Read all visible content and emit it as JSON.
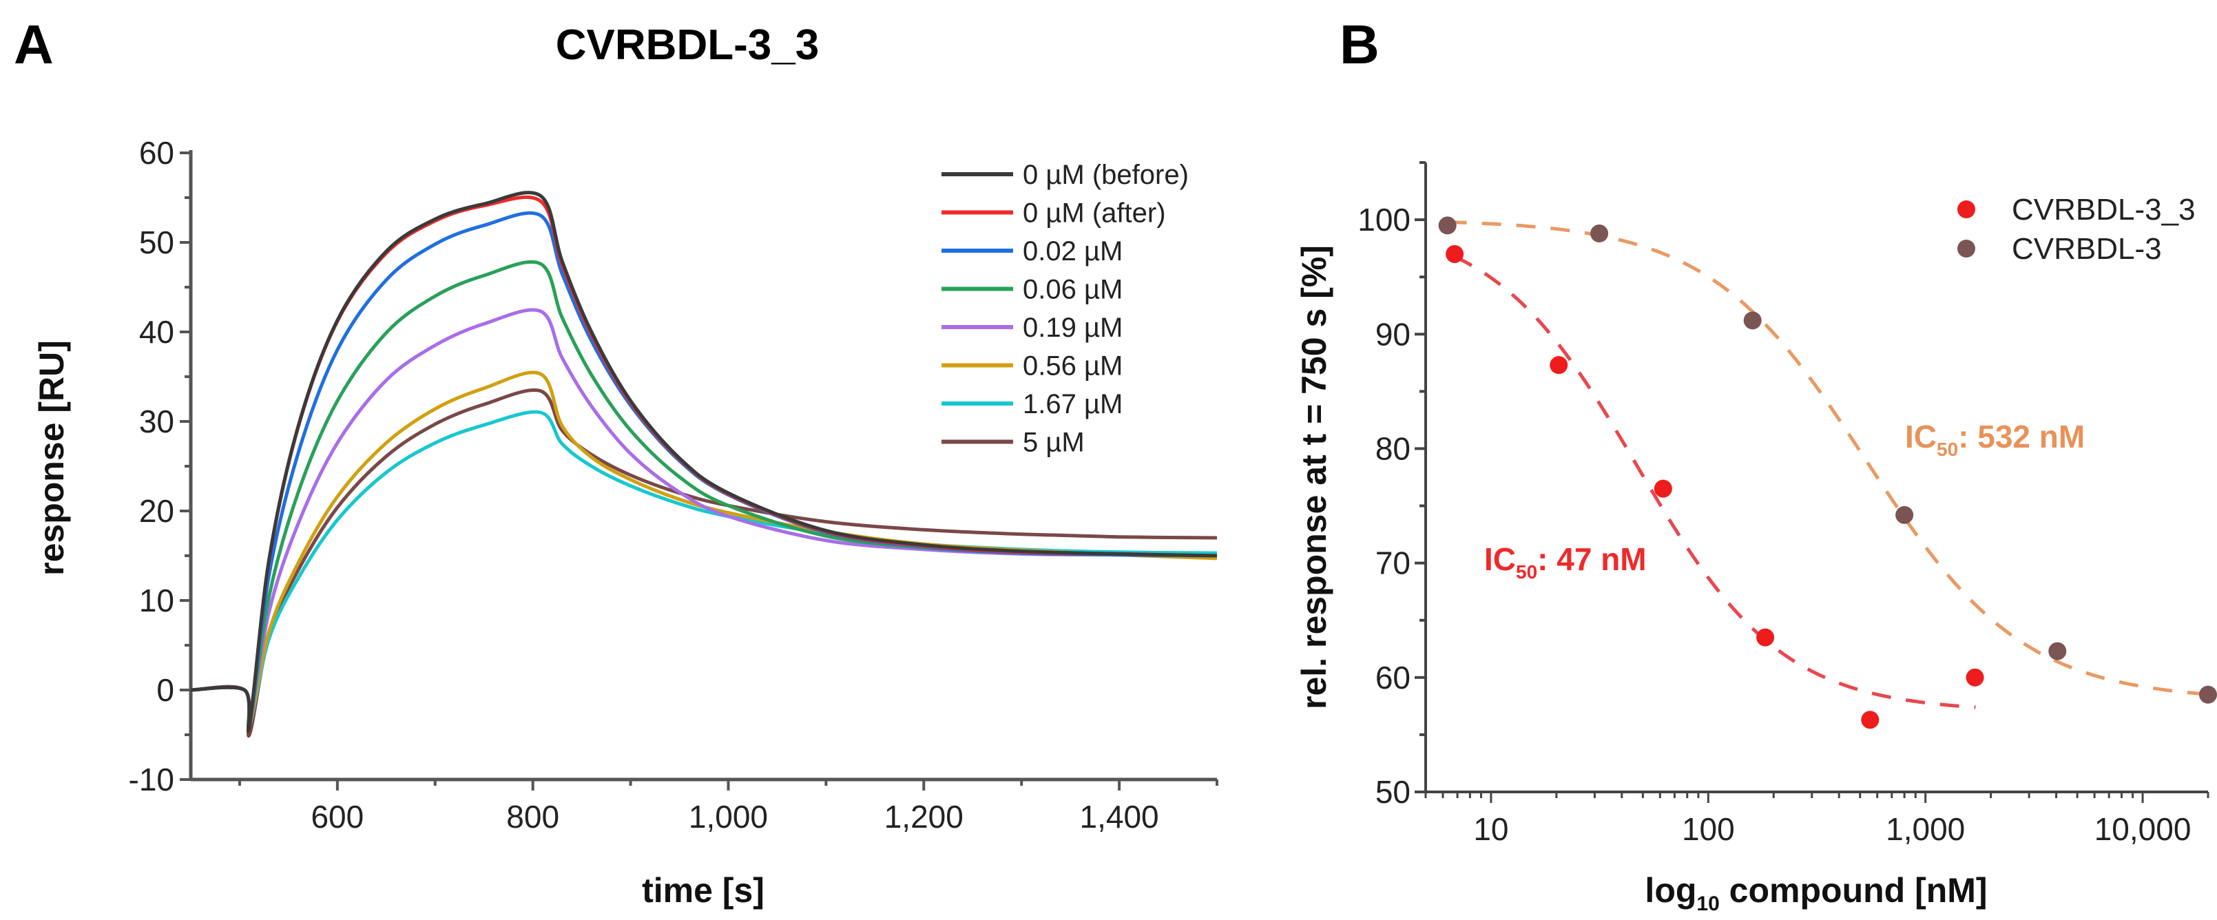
{
  "panels": {
    "a": "A",
    "b": "B"
  },
  "chart_data": [
    {
      "type": "line",
      "title": "CVRBDL-3_3",
      "xlabel": "time [s]",
      "ylabel": "response [RU]",
      "xlim": [
        450,
        1500
      ],
      "ylim": [
        -10,
        60
      ],
      "xticks": [
        600,
        800,
        1000,
        1200,
        1400
      ],
      "xtick_labels": [
        "600",
        "800",
        "1,000",
        "1,200",
        "1,400"
      ],
      "yticks": [
        -10,
        0,
        10,
        20,
        30,
        40,
        50,
        60
      ],
      "ytick_labels": [
        "-10",
        "0",
        "10",
        "20",
        "30",
        "40",
        "50",
        "60"
      ],
      "legend_position": "top-right",
      "x": [
        450,
        505,
        510,
        530,
        560,
        600,
        650,
        700,
        750,
        808,
        830,
        860,
        900,
        950,
        1000,
        1100,
        1200,
        1300,
        1400,
        1500
      ],
      "series": [
        {
          "name": "0 µM (before)",
          "color": "#3a3a3a",
          "values": [
            0,
            0,
            -4,
            14.5,
            29.5,
            41.3,
            49,
            52.6,
            54.3,
            55.2,
            47.9,
            40,
            32.3,
            25.9,
            22,
            17.8,
            16.2,
            15.5,
            15.2,
            15.0
          ]
        },
        {
          "name": "0 µM (after)",
          "color": "#ee2b2b",
          "values": [
            0,
            0,
            -4,
            14.4,
            29.4,
            41.2,
            48.8,
            52.4,
            54.1,
            54.6,
            47.5,
            39.7,
            32.1,
            25.8,
            21.9,
            17.7,
            16.1,
            15.4,
            15.2,
            15.0
          ]
        },
        {
          "name": "0.02 µM",
          "color": "#1f6fe0",
          "values": [
            0,
            0,
            -4,
            12.8,
            26.5,
            38,
            45.8,
            49.8,
            51.9,
            53,
            46.5,
            39,
            31.8,
            25.6,
            21.8,
            17.6,
            16,
            15.3,
            15.1,
            15.0
          ]
        },
        {
          "name": "0.06 µM",
          "color": "#2aa05a",
          "values": [
            0,
            0,
            -4,
            10.4,
            22.1,
            32.3,
            39.9,
            44,
            46.3,
            47.6,
            41.6,
            35.2,
            29,
            23.8,
            20.6,
            17.2,
            15.9,
            15.3,
            15.1,
            15.0
          ]
        },
        {
          "name": "0.19 µM",
          "color": "#a86ee8",
          "values": [
            0,
            0,
            -4,
            8.7,
            18.6,
            27.6,
            34.6,
            38.5,
            40.9,
            42.3,
            37.1,
            31.7,
            26.4,
            22.1,
            19.4,
            16.7,
            15.7,
            15.2,
            15.1,
            15.0
          ]
        },
        {
          "name": "0.56 µM",
          "color": "#d0a010",
          "values": [
            0,
            0,
            -4,
            6.5,
            14.2,
            21.6,
            27.6,
            31.4,
            33.7,
            35.3,
            29.5,
            26,
            23.5,
            21.3,
            19.8,
            17.7,
            16.3,
            15.6,
            15.1,
            14.7
          ]
        },
        {
          "name": "1.67 µM",
          "color": "#16c8d0",
          "values": [
            0,
            0,
            -4,
            5.7,
            12.5,
            19,
            24.3,
            27.6,
            29.6,
            31.0,
            27.5,
            25,
            22.8,
            20.8,
            19.4,
            17.5,
            16.3,
            15.7,
            15.4,
            15.3
          ]
        },
        {
          "name": "5 µM",
          "color": "#7a4848",
          "values": [
            0,
            0,
            -5,
            6.1,
            13.4,
            20.4,
            26.1,
            29.7,
            31.9,
            33.4,
            29,
            26.3,
            24,
            22,
            20.6,
            18.8,
            17.9,
            17.4,
            17.1,
            17.0
          ]
        }
      ]
    },
    {
      "type": "scatter",
      "xscale": "log",
      "xlabel": {
        "prefix": "log",
        "sub": "10",
        "suffix": " compound [nM]"
      },
      "ylabel": "rel. response at t = 750 s [%]",
      "xlim": [
        5,
        20000
      ],
      "ylim": [
        50,
        105
      ],
      "xticks": [
        10,
        100,
        1000,
        10000
      ],
      "xtick_labels": [
        "10",
        "100",
        "1,000",
        "10,000"
      ],
      "yticks": [
        50,
        60,
        70,
        80,
        90,
        100
      ],
      "ytick_labels": [
        "50",
        "60",
        "70",
        "80",
        "90",
        "100"
      ],
      "legend_position": "top-right",
      "series": [
        {
          "name": "CVRBDL-3_3",
          "color": "#ee1c1c",
          "fit_color": "#e8474f",
          "x": [
            6.8,
            20.5,
            62,
            183,
            556,
            1690
          ],
          "y": [
            97,
            87.3,
            76.5,
            63.5,
            56.3,
            60
          ],
          "fit": {
            "top": 100,
            "bottom": 57,
            "ic50": 47,
            "hill": 1.3,
            "xrange": [
              6.8,
              1700
            ]
          },
          "annotation": {
            "prefix": "IC",
            "sub": "50",
            "suffix": ": 47 nM"
          }
        },
        {
          "name": "CVRBDL-3",
          "color": "#7b5454",
          "fit_color": "#e89a64",
          "x": [
            6.3,
            31.5,
            160,
            800,
            4050,
            20000
          ],
          "y": [
            99.5,
            98.8,
            91.2,
            74.2,
            62.3,
            58.5
          ],
          "fit": {
            "top": 100,
            "bottom": 58,
            "ic50": 532,
            "hill": 1.2,
            "xrange": [
              6.3,
              20000
            ]
          },
          "annotation": {
            "prefix": "IC",
            "sub": "50",
            "suffix": ": 532 nM"
          }
        }
      ]
    }
  ]
}
